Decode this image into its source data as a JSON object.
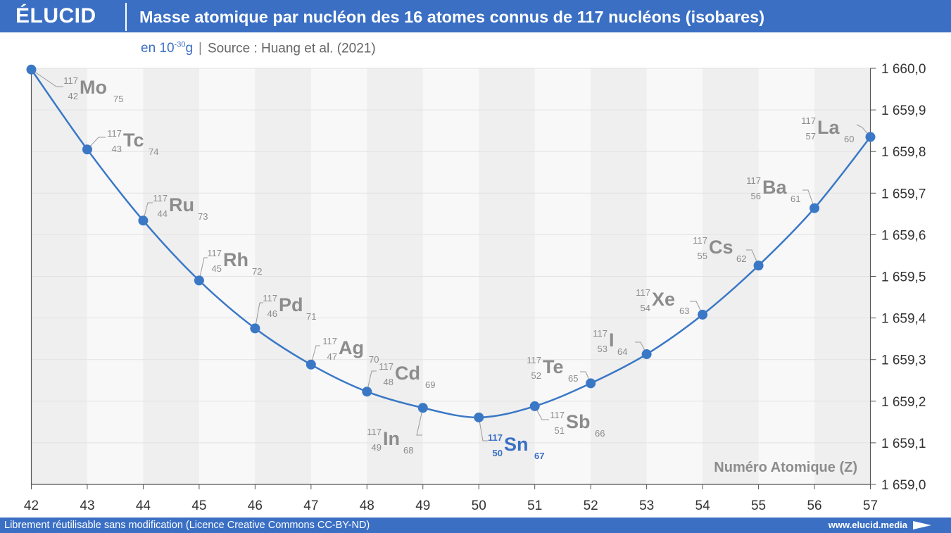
{
  "header": {
    "logo": "ÉLUCID",
    "title": "Masse atomique par nucléon des 16 atomes connus de 117 nucléons (isobares)"
  },
  "subtitle": {
    "unit_base": "en 10",
    "unit_exponent": "-30",
    "unit_suffix": "g",
    "separator": "|",
    "source": "Source : Huang et al. (2021)"
  },
  "footer": {
    "license": "Librement réutilisable sans modification (Licence Creative Commons CC-BY-ND)",
    "website": "www.elucid.media"
  },
  "colors": {
    "accent": "#3a6fc4",
    "line": "#3a78c6",
    "label_gray": "#8c8c8c",
    "band_dark": "#efefef",
    "band_light": "#f8f8f8"
  },
  "chart_data": {
    "type": "line",
    "title": "Masse atomique par nucléon des 16 atomes connus de 117 nucléons (isobares)",
    "xlabel": "Numéro Atomique (Z)",
    "ylabel": "",
    "xlim": [
      42,
      57
    ],
    "ylim": [
      1659.0,
      1660.0
    ],
    "y_ticks": [
      1659.0,
      1659.1,
      1659.2,
      1659.3,
      1659.4,
      1659.5,
      1659.6,
      1659.7,
      1659.8,
      1659.9,
      1660.0
    ],
    "y_tick_labels": [
      "1 659,0",
      "1 659,1",
      "1 659,2",
      "1 659,3",
      "1 659,4",
      "1 659,5",
      "1 659,6",
      "1 659,7",
      "1 659,8",
      "1 659,9",
      "1 660,0"
    ],
    "x_ticks": [
      42,
      43,
      44,
      45,
      46,
      47,
      48,
      49,
      50,
      51,
      52,
      53,
      54,
      55,
      56,
      57
    ],
    "y_axis_position": "right",
    "grid": true,
    "legend": "none",
    "series": [
      {
        "points": [
          {
            "z": 42,
            "y": 1659.997,
            "symbol": "Mo",
            "mass_number": "117",
            "atomic_number": "42",
            "neutrons": "75"
          },
          {
            "z": 43,
            "y": 1659.805,
            "symbol": "Tc",
            "mass_number": "117",
            "atomic_number": "43",
            "neutrons": "74"
          },
          {
            "z": 44,
            "y": 1659.634,
            "symbol": "Ru",
            "mass_number": "117",
            "atomic_number": "44",
            "neutrons": "73"
          },
          {
            "z": 45,
            "y": 1659.49,
            "symbol": "Rh",
            "mass_number": "117",
            "atomic_number": "45",
            "neutrons": "72"
          },
          {
            "z": 46,
            "y": 1659.375,
            "symbol": "Pd",
            "mass_number": "117",
            "atomic_number": "46",
            "neutrons": "71"
          },
          {
            "z": 47,
            "y": 1659.288,
            "symbol": "Ag",
            "mass_number": "117",
            "atomic_number": "47",
            "neutrons": "70"
          },
          {
            "z": 48,
            "y": 1659.223,
            "symbol": "Cd",
            "mass_number": "117",
            "atomic_number": "48",
            "neutrons": "69"
          },
          {
            "z": 49,
            "y": 1659.184,
            "symbol": "In",
            "mass_number": "117",
            "atomic_number": "49",
            "neutrons": "68"
          },
          {
            "z": 50,
            "y": 1659.161,
            "symbol": "Sn",
            "mass_number": "117",
            "atomic_number": "50",
            "neutrons": "67",
            "highlight": true
          },
          {
            "z": 51,
            "y": 1659.188,
            "symbol": "Sb",
            "mass_number": "117",
            "atomic_number": "51",
            "neutrons": "66"
          },
          {
            "z": 52,
            "y": 1659.243,
            "symbol": "Te",
            "mass_number": "117",
            "atomic_number": "52",
            "neutrons": "65"
          },
          {
            "z": 53,
            "y": 1659.313,
            "symbol": "I",
            "mass_number": "117",
            "atomic_number": "53",
            "neutrons": "64"
          },
          {
            "z": 54,
            "y": 1659.408,
            "symbol": "Xe",
            "mass_number": "117",
            "atomic_number": "54",
            "neutrons": "63"
          },
          {
            "z": 55,
            "y": 1659.526,
            "symbol": "Cs",
            "mass_number": "117",
            "atomic_number": "55",
            "neutrons": "62"
          },
          {
            "z": 56,
            "y": 1659.664,
            "symbol": "Ba",
            "mass_number": "117",
            "atomic_number": "56",
            "neutrons": "61"
          },
          {
            "z": 57,
            "y": 1659.835,
            "symbol": "La",
            "mass_number": "117",
            "atomic_number": "57",
            "neutrons": "60"
          }
        ]
      }
    ]
  }
}
